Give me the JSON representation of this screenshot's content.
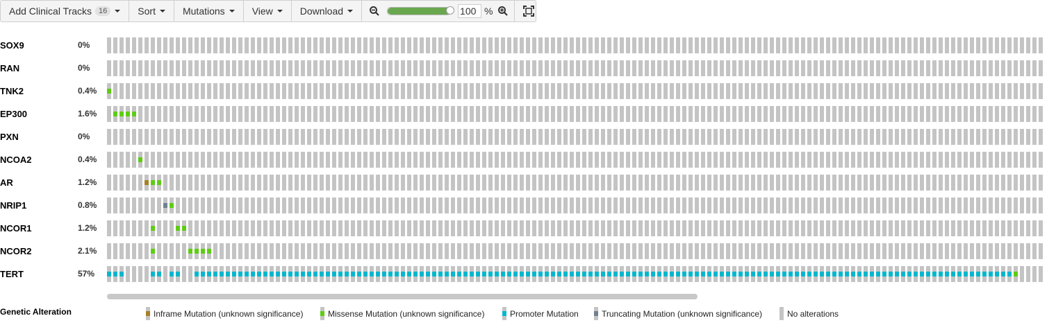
{
  "toolbar": {
    "add_clinical_tracks_label": "Add Clinical Tracks",
    "add_clinical_tracks_count": "16",
    "sort_label": "Sort",
    "mutations_label": "Mutations",
    "view_label": "View",
    "download_label": "Download",
    "zoom_value": "100",
    "zoom_percent_sign": "%",
    "zoom_fraction": 1.0
  },
  "colors": {
    "no_alteration": "#c4c4c4",
    "inframe": "#a68028",
    "missense": "#5dcd13",
    "promoter": "#00b7ce",
    "truncating": "#708090"
  },
  "sample_count": 150,
  "tracks": [
    {
      "gene": "SOX9",
      "percent": "0%",
      "alterations": []
    },
    {
      "gene": "RAN",
      "percent": "0%",
      "alterations": []
    },
    {
      "gene": "TNK2",
      "percent": "0.4%",
      "alterations": [
        {
          "sample": 0,
          "type": "missense"
        }
      ]
    },
    {
      "gene": "EP300",
      "percent": "1.6%",
      "alterations": [
        {
          "sample": 1,
          "type": "missense"
        },
        {
          "sample": 2,
          "type": "missense"
        },
        {
          "sample": 3,
          "type": "missense"
        },
        {
          "sample": 4,
          "type": "missense"
        }
      ]
    },
    {
      "gene": "PXN",
      "percent": "0%",
      "alterations": []
    },
    {
      "gene": "NCOA2",
      "percent": "0.4%",
      "alterations": [
        {
          "sample": 5,
          "type": "missense"
        }
      ]
    },
    {
      "gene": "AR",
      "percent": "1.2%",
      "alterations": [
        {
          "sample": 6,
          "type": "inframe"
        },
        {
          "sample": 7,
          "type": "missense"
        },
        {
          "sample": 8,
          "type": "missense"
        }
      ]
    },
    {
      "gene": "NRIP1",
      "percent": "0.8%",
      "alterations": [
        {
          "sample": 9,
          "type": "truncating"
        },
        {
          "sample": 10,
          "type": "missense"
        }
      ]
    },
    {
      "gene": "NCOR1",
      "percent": "1.2%",
      "alterations": [
        {
          "sample": 7,
          "type": "missense"
        },
        {
          "sample": 11,
          "type": "missense"
        },
        {
          "sample": 12,
          "type": "missense"
        }
      ]
    },
    {
      "gene": "NCOR2",
      "percent": "2.1%",
      "alterations": [
        {
          "sample": 7,
          "type": "missense"
        },
        {
          "sample": 13,
          "type": "missense"
        },
        {
          "sample": 14,
          "type": "missense"
        },
        {
          "sample": 15,
          "type": "missense"
        },
        {
          "sample": 16,
          "type": "missense"
        }
      ]
    },
    {
      "gene": "TERT",
      "percent": "57%",
      "alterations": "TERT_PATTERN"
    }
  ],
  "tert_promoter_samples": [
    0,
    1,
    2,
    7,
    8,
    10,
    11,
    14,
    15,
    16,
    17,
    18,
    19,
    20,
    21,
    22,
    23,
    24,
    25,
    26,
    27,
    28,
    29,
    30,
    31,
    32,
    33,
    34,
    35,
    36,
    37,
    38,
    39,
    40,
    41,
    42,
    43,
    44,
    45,
    46,
    47,
    48,
    49,
    50,
    51,
    52,
    53,
    54,
    55,
    56,
    57,
    58,
    59,
    60,
    61,
    62,
    63,
    64,
    65,
    66,
    67,
    68,
    69,
    70,
    71,
    72,
    73,
    74,
    75,
    76,
    77,
    78,
    79,
    80,
    81,
    82,
    83,
    84,
    85,
    86,
    87,
    88,
    89,
    90,
    91,
    92,
    93,
    94,
    95,
    96,
    97,
    98,
    99,
    100,
    101,
    102,
    103,
    104,
    105,
    106,
    107,
    108,
    109,
    110,
    111,
    112,
    113,
    114,
    115,
    116,
    117,
    118,
    119,
    120,
    121,
    122,
    123,
    124,
    125,
    126,
    127,
    128,
    129,
    130,
    131,
    132,
    133,
    134,
    135,
    136,
    137,
    138,
    139,
    140,
    141,
    142,
    143,
    144,
    145
  ],
  "tert_missense_samples": [
    145
  ],
  "legend": {
    "title": "Genetic Alteration",
    "items": [
      {
        "label": "Inframe Mutation (unknown significance)",
        "type": "inframe"
      },
      {
        "label": "Missense Mutation (unknown significance)",
        "type": "missense"
      },
      {
        "label": "Promoter Mutation",
        "type": "promoter"
      },
      {
        "label": "Truncating Mutation (unknown significance)",
        "type": "truncating"
      },
      {
        "label": "No alterations",
        "type": "none"
      }
    ]
  }
}
